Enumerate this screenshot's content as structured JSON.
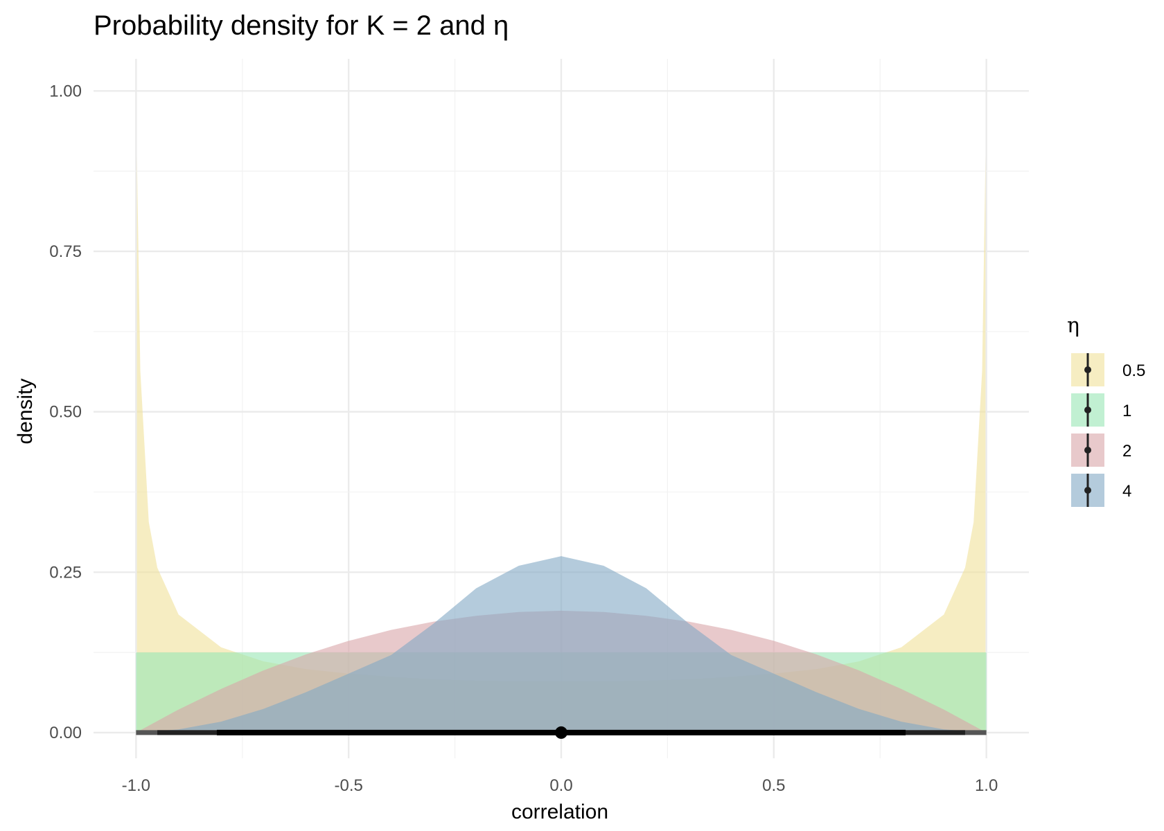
{
  "chart_data": {
    "type": "area",
    "title": "Probability density for K = 2 and η",
    "xlabel": "correlation",
    "ylabel": "density",
    "xlim": [
      -1.0,
      1.0
    ],
    "ylim": [
      0,
      1.0
    ],
    "x_ticks": [
      "-1.0",
      "-0.5",
      "0.0",
      "0.5",
      "1.0"
    ],
    "y_ticks": [
      "0.00",
      "0.25",
      "0.50",
      "0.75",
      "1.00"
    ],
    "grid": true,
    "legend_title": "η",
    "legend_position": "right",
    "series": [
      {
        "name": "0.5",
        "color": "#F0E199",
        "x": [
          -0.998,
          -0.99,
          -0.97,
          -0.95,
          -0.9,
          -0.8,
          -0.7,
          -0.6,
          -0.5,
          -0.4,
          -0.3,
          -0.2,
          -0.1,
          0,
          0.1,
          0.2,
          0.3,
          0.4,
          0.5,
          0.6,
          0.7,
          0.8,
          0.9,
          0.95,
          0.97,
          0.99,
          0.998
        ],
        "y": [
          0.9,
          0.564,
          0.328,
          0.257,
          0.184,
          0.133,
          0.111,
          0.099,
          0.092,
          0.087,
          0.083,
          0.081,
          0.08,
          0.08,
          0.08,
          0.081,
          0.083,
          0.087,
          0.092,
          0.099,
          0.111,
          0.133,
          0.184,
          0.257,
          0.328,
          0.564,
          0.9
        ]
      },
      {
        "name": "1",
        "color": "#98E6B4",
        "x": [
          -1.0,
          1.0
        ],
        "y": [
          0.125,
          0.125
        ]
      },
      {
        "name": "2",
        "color": "#D9A5A9",
        "x": [
          -1,
          -0.9,
          -0.8,
          -0.7,
          -0.6,
          -0.5,
          -0.4,
          -0.3,
          -0.2,
          -0.1,
          0,
          0.1,
          0.2,
          0.3,
          0.4,
          0.5,
          0.6,
          0.7,
          0.8,
          0.9,
          1
        ],
        "y": [
          0,
          0.036,
          0.068,
          0.097,
          0.122,
          0.143,
          0.16,
          0.173,
          0.182,
          0.188,
          0.19,
          0.188,
          0.182,
          0.173,
          0.16,
          0.143,
          0.122,
          0.097,
          0.068,
          0.036,
          0
        ]
      },
      {
        "name": "4",
        "color": "#82A9C4",
        "x": [
          -1,
          -0.9,
          -0.8,
          -0.7,
          -0.6,
          -0.5,
          -0.4,
          -0.3,
          -0.2,
          -0.1,
          0,
          0.1,
          0.2,
          0.3,
          0.4,
          0.5,
          0.6,
          0.7,
          0.8,
          0.9,
          1
        ],
        "y": [
          0,
          0.005,
          0.017,
          0.037,
          0.063,
          0.092,
          0.121,
          0.17,
          0.225,
          0.26,
          0.275,
          0.26,
          0.225,
          0.17,
          0.121,
          0.092,
          0.063,
          0.037,
          0.017,
          0.005,
          0
        ]
      }
    ],
    "interval": {
      "point": 0.0,
      "inner": [
        -0.81,
        0.81
      ],
      "outer": [
        -0.95,
        0.95
      ]
    }
  }
}
